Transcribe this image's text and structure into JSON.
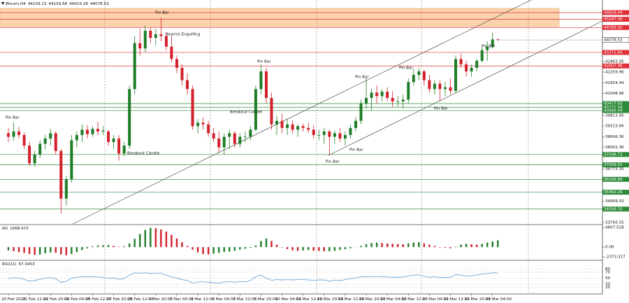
{
  "header": {
    "symbol": "Bitcoin,H4"
  },
  "chart_data": [
    {
      "type": "candlestick",
      "categories": [
        "20 Feb 2022",
        null,
        null,
        null,
        "21 Feb 12:00",
        null,
        null,
        null,
        "22 Feb 20:00",
        null,
        null,
        null,
        "24 Feb 04:00",
        null,
        null,
        null,
        "25 Feb 12:00",
        null,
        null,
        null,
        "27 Feb 20:00",
        null,
        null,
        null,
        "28 Feb 12:00",
        null,
        null,
        null,
        "1 Mar 20:00",
        null,
        null,
        null,
        "3 Mar 04:00",
        null,
        null,
        null,
        "4 Mar 12:00",
        null,
        null,
        null,
        "6 Mar 04:00",
        null,
        null,
        null,
        "7 Mar 12:00",
        null,
        null,
        null,
        "8 Mar 20:00",
        null,
        null,
        null,
        "10 Mar 04:00",
        null,
        null,
        null,
        "11 Mar 12:00",
        null,
        null,
        null,
        "12 Mar 20:00",
        null,
        null,
        null,
        "14 Mar 12:00",
        null,
        null,
        null,
        "15 Mar 20:00",
        null,
        null,
        null,
        "17 Mar 04:00",
        null,
        null,
        null,
        "18 Mar 12:00",
        null,
        null,
        null,
        "20 Mar 04:00",
        null,
        null,
        null,
        "21 Mar 12:00",
        null,
        null,
        null,
        "22 Mar 20:00",
        null,
        null,
        null,
        "24 Mar 04:00",
        null
      ],
      "open": [
        38800,
        38600,
        38900,
        38700,
        38100,
        37100,
        37600,
        38200,
        38500,
        38800,
        37800,
        35100,
        36200,
        38400,
        38700,
        39000,
        38750,
        39050,
        38900,
        38900,
        38300,
        38500,
        37650,
        38100,
        41300,
        43900,
        43600,
        44600,
        44200,
        44400,
        44300,
        43700,
        43000,
        42500,
        41800,
        41300,
        39200,
        39400,
        39300,
        38800,
        38500,
        38000,
        38600,
        38800,
        38200,
        38600,
        38600,
        39000,
        41300,
        42300,
        40800,
        39300,
        39500,
        39100,
        39300,
        39000,
        39200,
        39100,
        39000,
        38700,
        38700,
        38900,
        38600,
        38800,
        38500,
        38700,
        39100,
        39500,
        40500,
        40800,
        41100,
        40900,
        41150,
        40800,
        40600,
        40600,
        40700,
        41700,
        42100,
        42300,
        41800,
        41300,
        41600,
        41300,
        41400,
        41200,
        43000,
        42700,
        42300,
        42500,
        42900,
        43500,
        43700,
        44109.13
      ],
      "high": [
        39100,
        39420,
        39150,
        38850,
        38300,
        37800,
        38400,
        38700,
        39050,
        38900,
        37900,
        36400,
        38700,
        38900,
        39300,
        39250,
        39200,
        39450,
        39200,
        39000,
        38700,
        38700,
        38300,
        41500,
        44300,
        44700,
        44900,
        44800,
        44700,
        45350,
        44500,
        44300,
        43200,
        42700,
        42200,
        41500,
        39600,
        39700,
        39500,
        39100,
        38900,
        38800,
        39000,
        38900,
        38800,
        38900,
        39200,
        41500,
        42700,
        42500,
        41100,
        39800,
        39900,
        39600,
        39500,
        39300,
        39350,
        39400,
        39250,
        39000,
        39100,
        39000,
        38950,
        39100,
        38900,
        39300,
        39700,
        40700,
        41900,
        41300,
        41500,
        41300,
        41400,
        41200,
        40900,
        41000,
        41900,
        42450,
        42500,
        42400,
        42100,
        41800,
        41800,
        41700,
        41900,
        43200,
        43300,
        42900,
        42700,
        43000,
        43700,
        44000,
        44500,
        44159.68
      ],
      "low": [
        38300,
        38400,
        38500,
        37900,
        36950,
        36900,
        37400,
        37900,
        38100,
        37600,
        34262,
        34700,
        36000,
        38000,
        38300,
        38500,
        38600,
        38700,
        38700,
        38100,
        37900,
        37250,
        37500,
        37900,
        41000,
        43200,
        43400,
        43900,
        43800,
        44000,
        43500,
        42800,
        42200,
        41500,
        41000,
        39000,
        38800,
        39000,
        38600,
        38300,
        37700,
        37600,
        37900,
        38000,
        38000,
        38300,
        38400,
        38900,
        41000,
        40500,
        39000,
        38700,
        38800,
        38700,
        38800,
        38600,
        38900,
        38800,
        38500,
        38400,
        38200,
        37550,
        38200,
        38300,
        38100,
        38500,
        38900,
        39300,
        40200,
        40100,
        40500,
        40600,
        40600,
        40300,
        40300,
        40200,
        40500,
        41500,
        41800,
        41500,
        41100,
        41000,
        40600,
        40900,
        41000,
        41100,
        42500,
        42000,
        42000,
        42300,
        42800,
        42900,
        43600,
        44016.28
      ],
      "close": [
        38600,
        38900,
        38700,
        38100,
        37100,
        37600,
        38200,
        38500,
        38800,
        37800,
        35100,
        36200,
        38400,
        38700,
        39000,
        38750,
        39050,
        38900,
        38950,
        38300,
        38500,
        37650,
        38100,
        41300,
        43900,
        43600,
        44600,
        44200,
        44400,
        44300,
        43700,
        43000,
        42500,
        41800,
        41300,
        39200,
        39400,
        39300,
        38800,
        38500,
        38000,
        38600,
        38800,
        38200,
        38600,
        38600,
        39000,
        41300,
        42300,
        40800,
        39300,
        39500,
        39100,
        39300,
        39000,
        39200,
        39100,
        39000,
        38700,
        38700,
        38900,
        38600,
        38800,
        38500,
        38700,
        39100,
        39500,
        40500,
        40800,
        41100,
        40900,
        41150,
        40800,
        40600,
        40600,
        40700,
        41700,
        42100,
        42300,
        41800,
        41300,
        41600,
        41300,
        41400,
        41200,
        43000,
        42700,
        42300,
        42500,
        42900,
        43500,
        43700,
        44109.13,
        44078.53
      ],
      "ylim": [
        33668,
        46340
      ],
      "yticks": [
        42863.95,
        42259.96,
        41654.49,
        41048.96,
        39813.95,
        39213.66,
        38606.36,
        38002.36,
        36773.35,
        34959.03,
        33745.55
      ],
      "levels": [
        {
          "value": 45626.44,
          "color": "#e0303a"
        },
        {
          "value": 45247.38,
          "color": "#e0303a"
        },
        {
          "value": 44783.31,
          "color": "#e0303a"
        },
        {
          "value": 43371.6,
          "label": "43371.60",
          "color": "#e0303a"
        },
        {
          "value": 42607.96,
          "color": "#e0303a"
        },
        {
          "value": 40477.83,
          "color": "#2e8b3a"
        },
        {
          "value": 40271.04,
          "color": "#2e8b3a"
        },
        {
          "value": 40085.09,
          "color": "#2e8b3a"
        },
        {
          "value": 37596.73,
          "color": "#2e8b3a"
        },
        {
          "value": 37009.01,
          "color": "#2e8b3a"
        },
        {
          "value": 36190.89,
          "color": "#2e8b3a"
        },
        {
          "value": 35462.26,
          "color": "#2e8b3a"
        },
        {
          "value": 34508.33,
          "color": "#2e8b3a"
        }
      ],
      "annotations": [
        "Pin Bar",
        "Pin Bar",
        "Bearish Engulfing",
        "Breakout Candle",
        "Pin Bar",
        "Breakout Candle",
        "Pin Bar",
        "Pin Bar",
        "Pin Bar",
        "Pin Bar",
        "Pin Bar",
        "Pin Bar"
      ],
      "up_color": "#1e7d28",
      "down_color": "#d3202a"
    },
    {
      "type": "bar",
      "title": "AO",
      "values": [
        -800,
        -1000,
        -1200,
        -1400,
        -1700,
        -1900,
        -1800,
        -1500,
        -1300,
        -1400,
        -1800,
        -2000,
        -1700,
        -1200,
        -700,
        -300,
        200,
        400,
        450,
        500,
        300,
        100,
        200,
        900,
        2000,
        3200,
        4200,
        4700,
        4600,
        4300,
        3800,
        3000,
        2100,
        1200,
        300,
        -600,
        -1300,
        -1700,
        -1800,
        -1600,
        -1400,
        -1200,
        -1100,
        -900,
        -600,
        -400,
        -200,
        400,
        1500,
        2100,
        1500,
        600,
        -100,
        -500,
        -800,
        -900,
        -800,
        -700,
        -900,
        -950,
        -1000,
        -1000,
        -900,
        -700,
        -500,
        -300,
        0,
        300,
        700,
        1000,
        1100,
        1000,
        900,
        800,
        750,
        700,
        900,
        1100,
        1200,
        900,
        600,
        300,
        -100,
        -200,
        -300,
        100,
        600,
        800,
        700,
        600,
        800,
        1100,
        1400,
        1668.473
      ],
      "ylim": [
        -2373.317,
        4807.528
      ],
      "yticks": [
        4807.528,
        {
          "value": 0,
          "label": "0.00"
        },
        -2373.317
      ],
      "up_color": "#1e7d28",
      "down_color": "#d3202a"
    },
    {
      "type": "line",
      "title": "RSI(21)",
      "values": [
        48,
        52,
        50,
        46,
        40,
        42,
        46,
        50,
        52,
        48,
        36,
        40,
        50,
        53,
        55,
        54,
        55,
        54,
        52,
        50,
        51,
        46,
        49,
        60,
        68,
        66,
        68,
        65,
        66,
        66,
        60,
        55,
        50,
        45,
        42,
        34,
        37,
        38,
        36,
        35,
        33,
        37,
        39,
        36,
        39,
        38,
        42,
        55,
        60,
        50,
        43,
        45,
        44,
        45,
        44,
        45,
        45,
        44,
        43,
        44,
        44,
        40,
        43,
        42,
        45,
        48,
        50,
        55,
        54,
        56,
        55,
        56,
        54,
        53,
        53,
        54,
        57,
        60,
        61,
        56,
        53,
        55,
        52,
        53,
        52,
        62,
        60,
        57,
        58,
        61,
        64,
        65,
        68,
        67.0453
      ],
      "ylim": [
        0,
        100
      ],
      "yticks": [
        80,
        70,
        50,
        30,
        20
      ],
      "color": "#5b9bd5"
    }
  ]
}
